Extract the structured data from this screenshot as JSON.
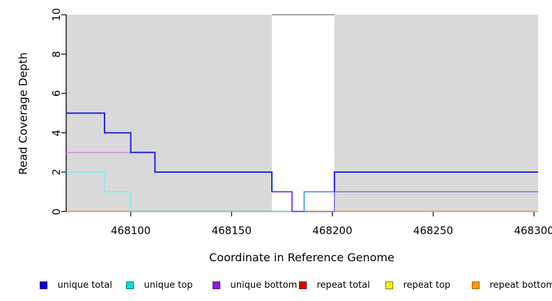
{
  "chart_data": {
    "type": "line",
    "subtype": "step-coverage-plot",
    "title": "",
    "xlabel": "Coordinate in Reference Genome",
    "ylabel": "Read Coverage Depth",
    "xlim": [
      468068,
      468302
    ],
    "ylim": [
      0,
      10
    ],
    "x_ticks": [
      468100,
      468150,
      468200,
      468250,
      468300
    ],
    "y_ticks": [
      0,
      2,
      4,
      6,
      8,
      10
    ],
    "grid": false,
    "axis_color": "#000000",
    "background_regions": [
      {
        "name": "shaded-region-left",
        "x0": 468068,
        "x1": 468170,
        "color": "#d9d9d9"
      },
      {
        "name": "unshaded-gap",
        "x0": 468170,
        "x1": 468201,
        "color": "#ffffff"
      },
      {
        "name": "shaded-region-right",
        "x0": 468201,
        "x1": 468302,
        "color": "#d9d9d9"
      }
    ],
    "clipped_marker": {
      "y": 10,
      "x0": 468170,
      "x1": 468201,
      "color": "#8c8c8c"
    },
    "series": [
      {
        "name": "unique total",
        "color": "#2121e6",
        "steps": [
          [
            468068,
            5
          ],
          [
            468087,
            4
          ],
          [
            468100,
            3
          ],
          [
            468112,
            2
          ],
          [
            468170,
            1
          ],
          [
            468180,
            0
          ],
          [
            468186,
            1
          ],
          [
            468201,
            2
          ],
          [
            468302,
            2
          ]
        ]
      },
      {
        "name": "unique top",
        "color": "#00e0e0",
        "steps": [
          [
            468068,
            2
          ],
          [
            468087,
            1
          ],
          [
            468100,
            0
          ],
          [
            468186,
            1
          ],
          [
            468302,
            1
          ]
        ]
      },
      {
        "name": "unique bottom",
        "color": "#9932cc",
        "steps": [
          [
            468068,
            3
          ],
          [
            468112,
            2
          ],
          [
            468170,
            1
          ],
          [
            468180,
            0
          ],
          [
            468201,
            1
          ],
          [
            468302,
            1
          ]
        ]
      },
      {
        "name": "repeat total",
        "color": "#e00000",
        "steps": [
          [
            468068,
            0
          ],
          [
            468302,
            0
          ]
        ]
      },
      {
        "name": "repeat top",
        "color": "#f5f500",
        "steps": [
          [
            468068,
            0
          ],
          [
            468302,
            0
          ]
        ]
      },
      {
        "name": "repeat bottom",
        "color": "#ff9900",
        "steps": [
          [
            468068,
            0
          ],
          [
            468302,
            0
          ]
        ]
      }
    ],
    "drawn_segments": [
      {
        "name": "clipped-coverage-marker",
        "color": "#8c8c8c",
        "width": 1.6,
        "points": [
          [
            468170,
            10
          ],
          [
            468201,
            10
          ]
        ]
      },
      {
        "name": "zero-line-green-blend",
        "color": "#7fd08a",
        "width": 1.4,
        "points": [
          [
            468100,
            0
          ],
          [
            468180,
            0
          ]
        ]
      },
      {
        "name": "zero-line-crimson-blend",
        "color": "#e0556a",
        "width": 1.4,
        "points": [
          [
            468186,
            0
          ],
          [
            468201,
            0
          ]
        ]
      },
      {
        "name": "zero-line-blueviolet-blend",
        "color": "#4a33e2",
        "width": 1.5,
        "points": [
          [
            468180,
            0
          ],
          [
            468186,
            0
          ]
        ]
      },
      {
        "name": "repeat-bottom-zero-left",
        "color": "#ff9c14",
        "width": 1.6,
        "points": [
          [
            468068,
            0
          ],
          [
            468100,
            0
          ]
        ]
      },
      {
        "name": "repeat-bottom-zero-right",
        "color": "#ff9c14",
        "width": 1.6,
        "points": [
          [
            468201,
            0
          ],
          [
            468302,
            0
          ]
        ]
      },
      {
        "name": "unique-bottom-level3",
        "color": "#c68ce6",
        "width": 1.4,
        "points": [
          [
            468068,
            3
          ],
          [
            468100,
            3
          ]
        ]
      },
      {
        "name": "unique-top-steps-left",
        "color": "#74f0f0",
        "width": 1.4,
        "points": [
          [
            468068,
            2
          ],
          [
            468087,
            2
          ],
          [
            468087,
            1
          ],
          [
            468100,
            1
          ],
          [
            468100,
            0
          ]
        ]
      },
      {
        "name": "unique-bottom-mid",
        "color": "#6f2fe2",
        "width": 1.7,
        "points": [
          [
            468170,
            1
          ],
          [
            468180,
            1
          ],
          [
            468180,
            0
          ]
        ]
      },
      {
        "name": "unique-top-mid",
        "color": "#3d93f2",
        "width": 1.7,
        "points": [
          [
            468186,
            0
          ],
          [
            468186,
            1
          ],
          [
            468201,
            1
          ]
        ]
      },
      {
        "name": "unique-bottom-right",
        "color": "#7f6fe0",
        "width": 1.5,
        "points": [
          [
            468201,
            0
          ],
          [
            468201,
            1
          ],
          [
            468302,
            1
          ]
        ]
      },
      {
        "name": "unique-total-steps-left",
        "color": "#2121e6",
        "width": 2,
        "points": [
          [
            468068,
            5
          ],
          [
            468087,
            5
          ],
          [
            468087,
            4
          ],
          [
            468100,
            4
          ],
          [
            468100,
            3
          ],
          [
            468112,
            3
          ],
          [
            468112,
            2
          ],
          [
            468170,
            2
          ],
          [
            468170,
            1
          ]
        ]
      },
      {
        "name": "unique-total-right",
        "color": "#2121e6",
        "width": 2,
        "points": [
          [
            468201,
            1
          ],
          [
            468201,
            2
          ],
          [
            468302,
            2
          ]
        ]
      }
    ]
  },
  "legend": {
    "items": [
      {
        "label": "unique total",
        "fill": "#0000e0",
        "border": "#00007a"
      },
      {
        "label": "unique top",
        "fill": "#00e0e0",
        "border": "#007a7a"
      },
      {
        "label": "unique bottom",
        "fill": "#8a1fd2",
        "border": "#4f0f85"
      },
      {
        "label": "repeat total",
        "fill": "#e00000",
        "border": "#7a0000"
      },
      {
        "label": "repeat top",
        "fill": "#f5f500",
        "border": "#7a7a00"
      },
      {
        "label": "repeat bottom",
        "fill": "#ff9900",
        "border": "#a05f00"
      }
    ]
  }
}
